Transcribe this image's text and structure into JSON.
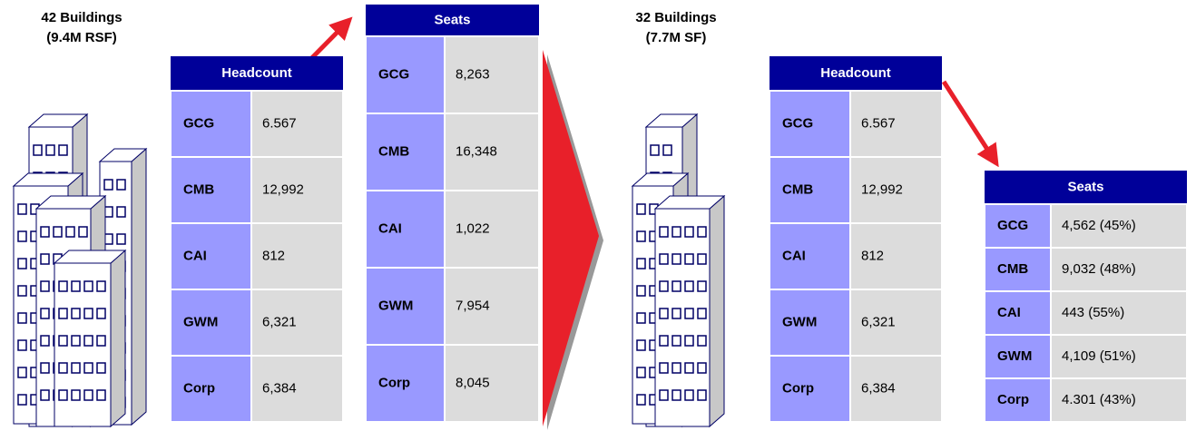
{
  "left": {
    "caption": [
      "42 Buildings",
      "(9.4M RSF)"
    ],
    "headcount": {
      "header": "Headcount",
      "rows": [
        [
          "GCG",
          "6.567"
        ],
        [
          "CMB",
          "12,992"
        ],
        [
          "CAI",
          "812"
        ],
        [
          "GWM",
          "6,321"
        ],
        [
          "Corp",
          "6,384"
        ]
      ]
    },
    "seats": {
      "header": "Seats",
      "rows": [
        [
          "GCG",
          "8,263"
        ],
        [
          "CMB",
          "16,348"
        ],
        [
          "CAI",
          "1,022"
        ],
        [
          "GWM",
          "7,954"
        ],
        [
          "Corp",
          "8,045"
        ]
      ]
    }
  },
  "right": {
    "caption": [
      "32 Buildings",
      "(7.7M SF)"
    ],
    "headcount": {
      "header": "Headcount",
      "rows": [
        [
          "GCG",
          "6.567"
        ],
        [
          "CMB",
          "12,992"
        ],
        [
          "CAI",
          "812"
        ],
        [
          "GWM",
          "6,321"
        ],
        [
          "Corp",
          "6,384"
        ]
      ]
    },
    "seats": {
      "header": "Seats",
      "rows": [
        [
          "GCG",
          "4,562 (45%)"
        ],
        [
          "CMB",
          "9,032 (48%)"
        ],
        [
          "CAI",
          "443 (55%)"
        ],
        [
          "GWM",
          "4,109 (51%)"
        ],
        [
          "Corp",
          "4.301 (43%)"
        ]
      ]
    }
  }
}
